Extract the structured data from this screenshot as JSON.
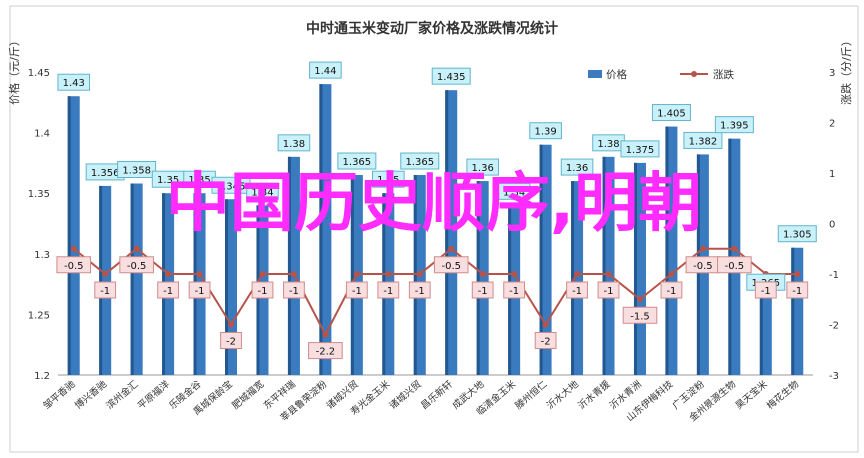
{
  "watermark_text": "中国历史顺序,明朝",
  "colors": {
    "bar": "#3a7bbf",
    "bar_dark": "#23578f",
    "line": "#b8534a",
    "price_label_bg": "#c9f1fa",
    "price_label_border": "#63b3cc",
    "change_label_bg": "#f8dede",
    "change_label_border": "#d08b8b",
    "watermark": "#ff2bff",
    "grid": "#d8d8d8"
  },
  "chart_data": {
    "type": "bar",
    "title": "中时通玉米变动厂家价格及涨跌情况统计",
    "ylabel_left": "价格（元/斤）",
    "ylabel_right": "涨跌（分/斤）",
    "ylim_left": [
      1.2,
      1.45
    ],
    "yticks_left": [
      "1.2",
      "1.25",
      "1.3",
      "1.35",
      "1.4",
      "1.45"
    ],
    "ylim_right": [
      -3,
      3
    ],
    "yticks_right": [
      "-3",
      "-2",
      "-1",
      "0",
      "1",
      "2",
      "3"
    ],
    "grid": false,
    "legend_position": "top-right",
    "categories": [
      "邹平香驰",
      "博兴香驰",
      "滨州金汇",
      "平原福洋",
      "乐陵金谷",
      "禹城保龄宝",
      "肥城福宽",
      "东平祥瑞",
      "莘县鲁荣淀粉",
      "诸城兴贸",
      "寿光金玉米",
      "诸城兴贸",
      "昌乐新轩",
      "成武大地",
      "临清金玉米",
      "滕州恒仁",
      "沂水大地",
      "沂水青援",
      "沂水青洲",
      "山东伊梅科技",
      "广玉淀粉",
      "金州景源生物",
      "昊天宝米",
      "梅花生物"
    ],
    "series": [
      {
        "name": "价格",
        "type": "bar",
        "values": [
          1.43,
          1.356,
          1.358,
          1.35,
          1.35,
          1.345,
          1.34,
          1.38,
          1.44,
          1.365,
          1.35,
          1.365,
          1.435,
          1.36,
          1.34,
          1.39,
          1.36,
          1.38,
          1.375,
          1.405,
          1.382,
          1.395,
          1.265,
          1.305
        ]
      },
      {
        "name": "涨跌",
        "type": "line",
        "values": [
          -0.5,
          -1,
          -0.5,
          -1,
          -1,
          -2,
          -1,
          -1,
          -2.2,
          -1,
          -1,
          -1,
          -0.5,
          -1,
          -1,
          -2,
          -1,
          -1,
          -1.5,
          -1,
          -0.5,
          -0.5,
          -1,
          -1
        ]
      }
    ],
    "price_labels": [
      "1.43",
      "1.356",
      "1.358",
      "1.35",
      "1.35",
      "1.345",
      "1.34",
      "1.38",
      "1.44",
      "1.365",
      "1.35",
      "1.365",
      "1.435",
      "1.36",
      "1.34",
      "1.39",
      "1.36",
      "1.38",
      "1.375",
      "1.405",
      "1.382",
      "1.395",
      "1.265",
      "1.305"
    ],
    "change_labels": [
      "-0.5",
      "-1",
      "-0.5",
      "-1",
      "-1",
      "-2",
      "-1",
      "-1",
      "-2.2",
      "-1",
      "-1",
      "-1",
      "-0.5",
      "-1",
      "-1",
      "-2",
      "-1",
      "-1",
      "-1.5",
      "-1",
      "-0.5",
      "-0.5",
      "-1",
      "-1"
    ]
  }
}
